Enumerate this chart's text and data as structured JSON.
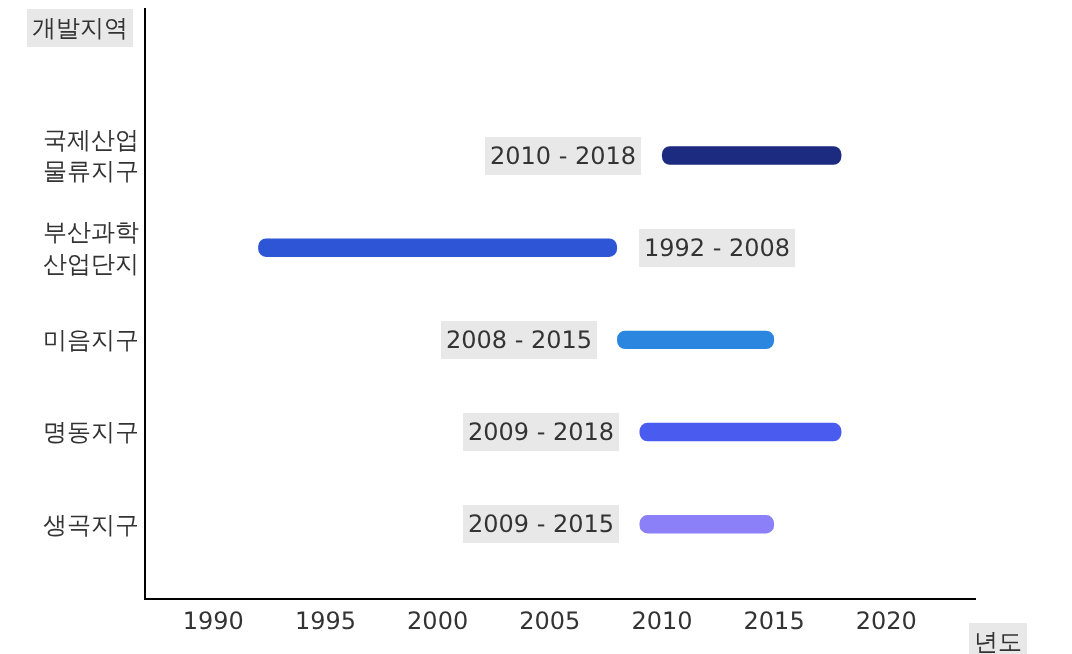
{
  "chart_data": {
    "type": "bar",
    "orientation": "horizontal",
    "xlabel": "년도",
    "ylabel": "개발지역",
    "categories": [
      "국제산업\n물류지구",
      "부산과학\n산업단지",
      "미음지구",
      "명동지구",
      "생곡지구"
    ],
    "base": [
      2010,
      1992,
      2008,
      2009,
      2009
    ],
    "values": [
      8,
      16,
      7,
      9,
      6
    ],
    "colors": [
      "#1c2a80",
      "#2d55d6",
      "#2b86e0",
      "#4a5bf0",
      "#8b80f7"
    ],
    "annotations": [
      {
        "text": "2010 - 2018",
        "x": 2010,
        "y": "국제산업\n물류지구"
      },
      {
        "text": "1992 - 2008",
        "x": 2008,
        "y": "부산과학\n산업단지"
      },
      {
        "text": "2008 - 2015",
        "x": 2008,
        "y": "미음지구"
      },
      {
        "text": "2009 - 2018",
        "x": 2009,
        "y": "명동지구"
      },
      {
        "text": "2009 - 2015",
        "x": 2009,
        "y": "생곡지구"
      }
    ],
    "xlim": [
      1987,
      2024
    ],
    "xticks": [
      1990,
      1995,
      2000,
      2005,
      2010,
      2015,
      2020
    ]
  }
}
